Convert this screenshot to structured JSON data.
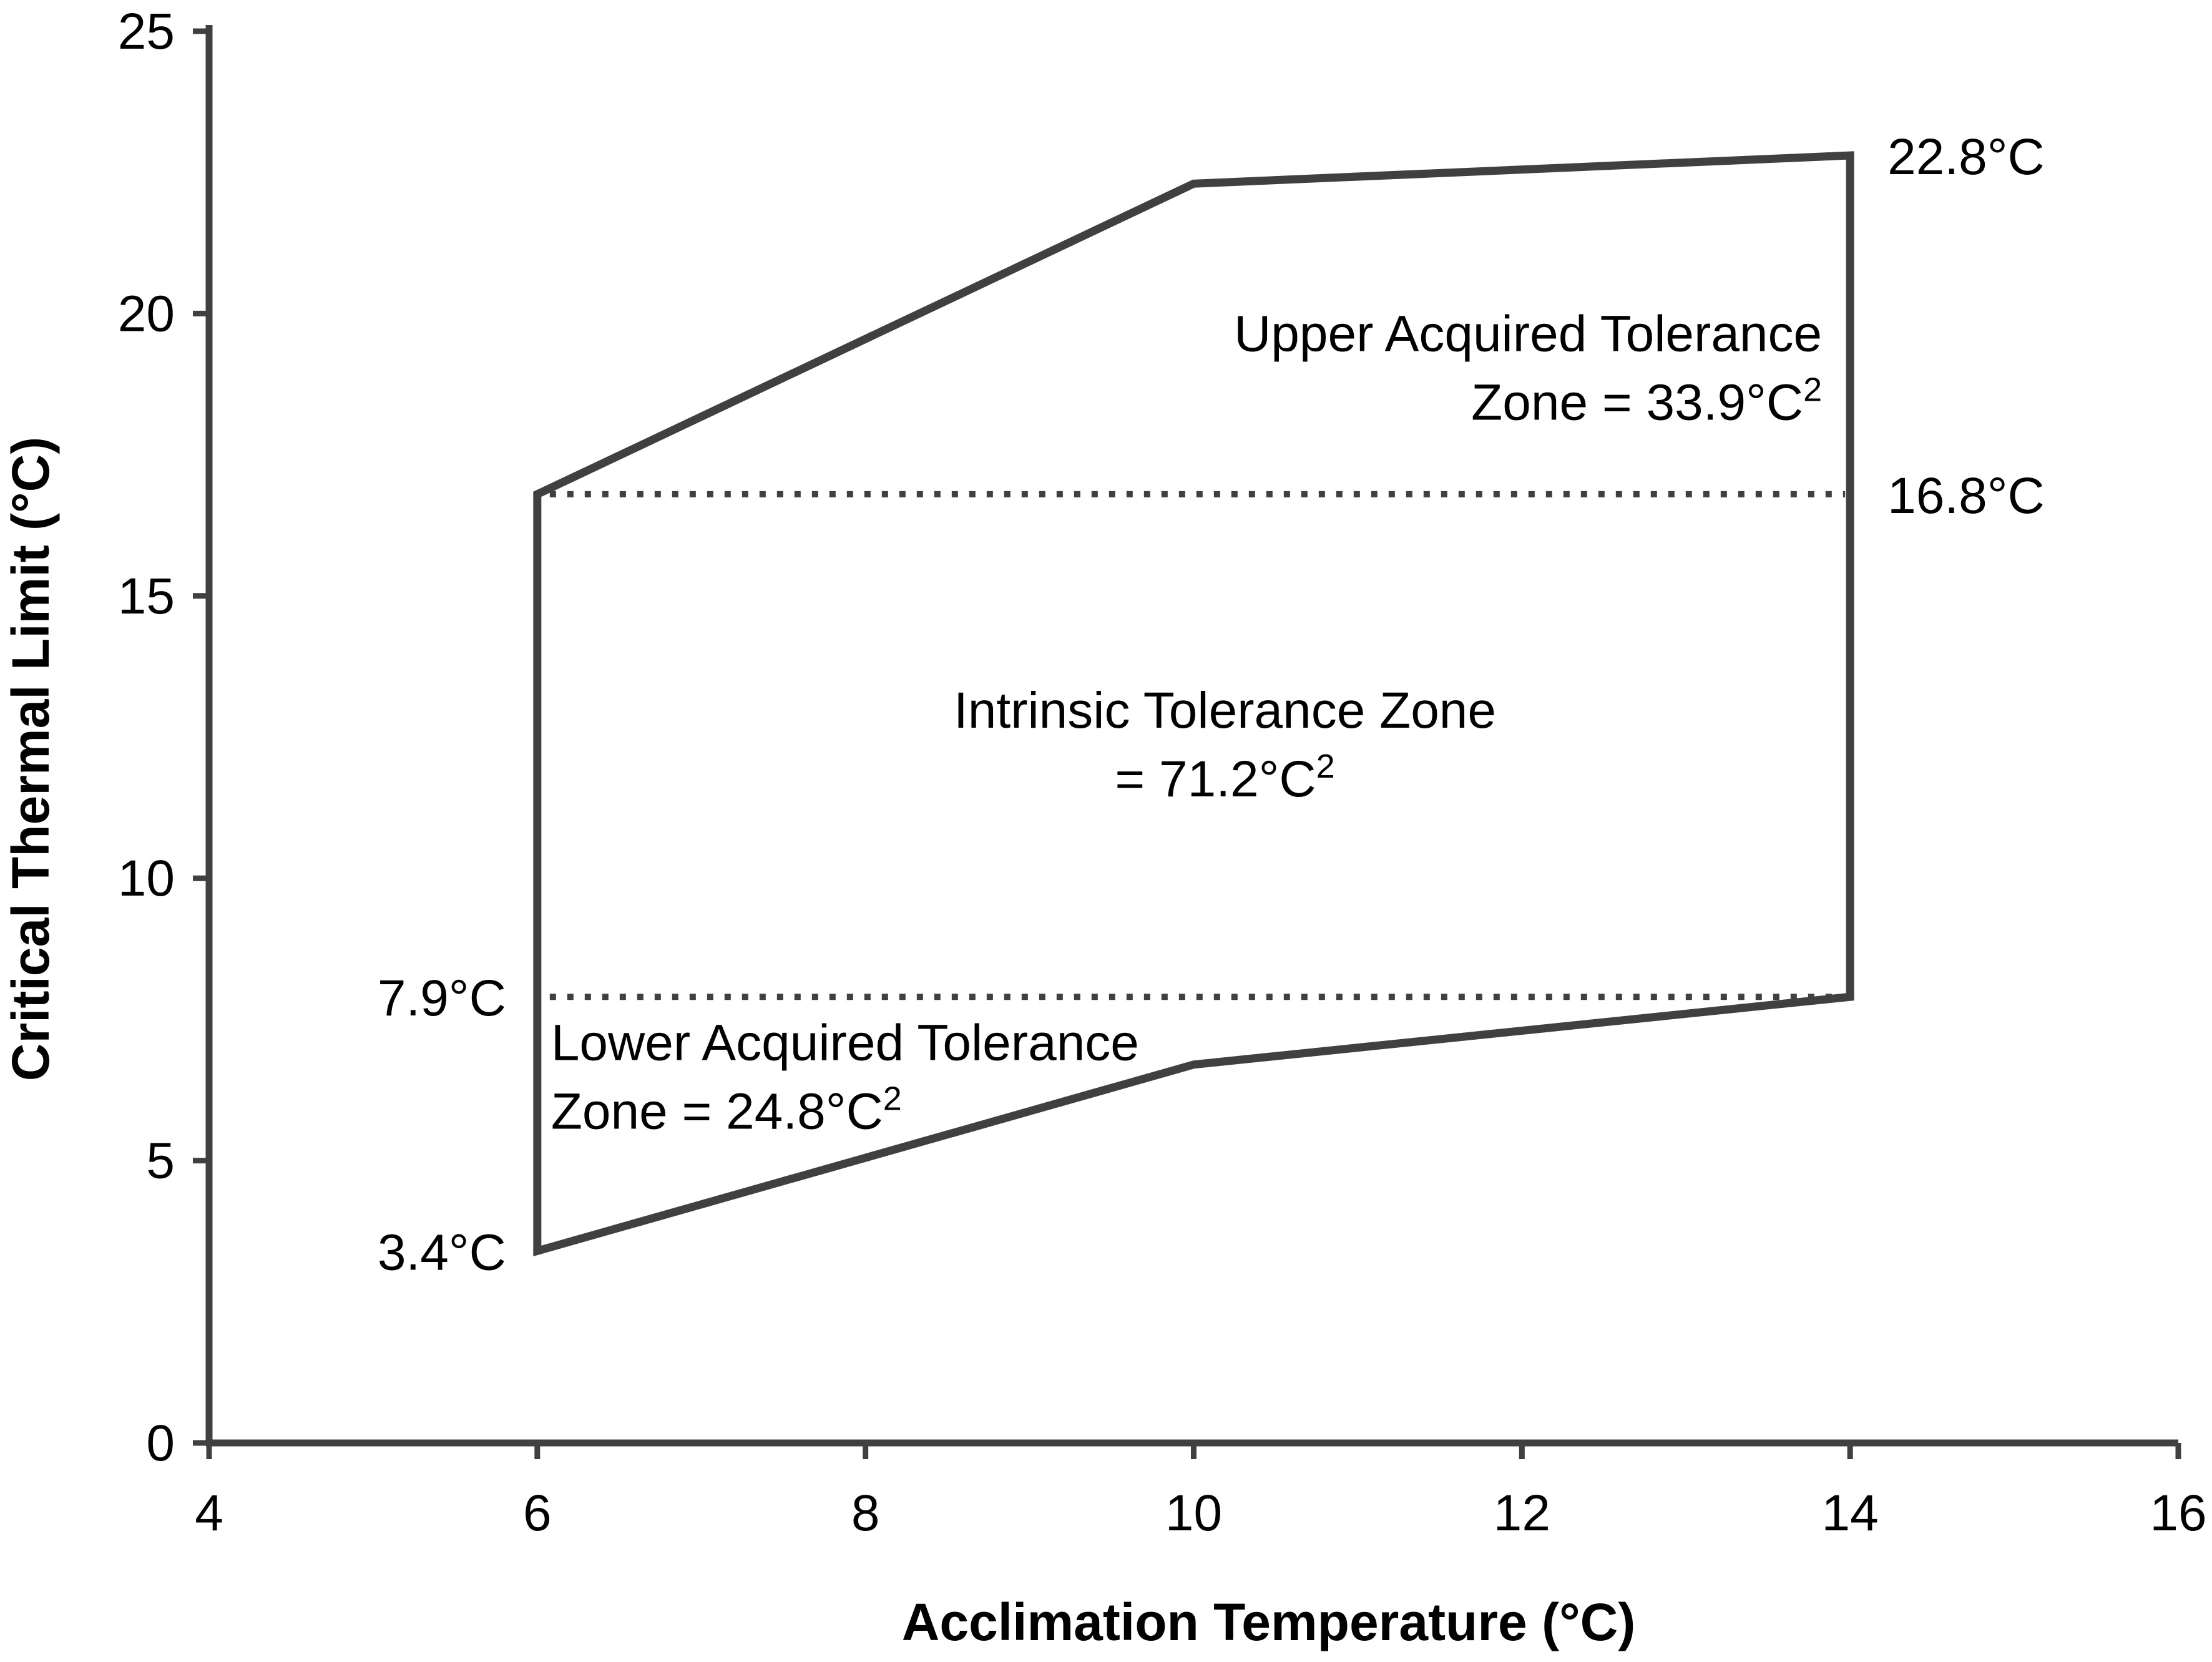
{
  "chart_data": {
    "type": "line",
    "title": "",
    "xlabel": "Acclimation Temperature (°C)",
    "ylabel": "Critical Thermal Limit (°C)",
    "xlim": [
      4,
      16
    ],
    "ylim": [
      0,
      25
    ],
    "x_ticks": [
      "4",
      "6",
      "8",
      "10",
      "12",
      "14",
      "16"
    ],
    "y_ticks": [
      "0",
      "5",
      "10",
      "15",
      "20",
      "25"
    ],
    "grid": false,
    "series": [
      {
        "x": [
          6,
          10,
          14
        ],
        "y": [
          16.8,
          22.3,
          22.8
        ]
      },
      {
        "x": [
          6,
          10,
          14
        ],
        "y": [
          3.4,
          6.7,
          7.9
        ]
      }
    ],
    "reference_lines": [
      {
        "y": 16.8,
        "x_range": [
          6,
          14
        ],
        "style": "dotted"
      },
      {
        "y": 7.9,
        "x_range": [
          6,
          14
        ],
        "style": "dotted"
      }
    ],
    "annotations": [
      {
        "text": "22.8°C"
      },
      {
        "text": "16.8°C"
      },
      {
        "text": "7.9°C"
      },
      {
        "text": "3.4°C"
      }
    ],
    "zones": {
      "upper": {
        "line1": "Upper Acquired Tolerance",
        "line2": "Zone = 33.9°C",
        "sup": "2"
      },
      "intrinsic": {
        "line1": "Intrinsic Tolerance Zone",
        "line2": "= 71.2°C",
        "sup": "2"
      },
      "lower": {
        "line1": "Lower Acquired Tolerance",
        "line2": "Zone = 24.8°C",
        "sup": "2"
      }
    },
    "line_color": "#404040"
  }
}
